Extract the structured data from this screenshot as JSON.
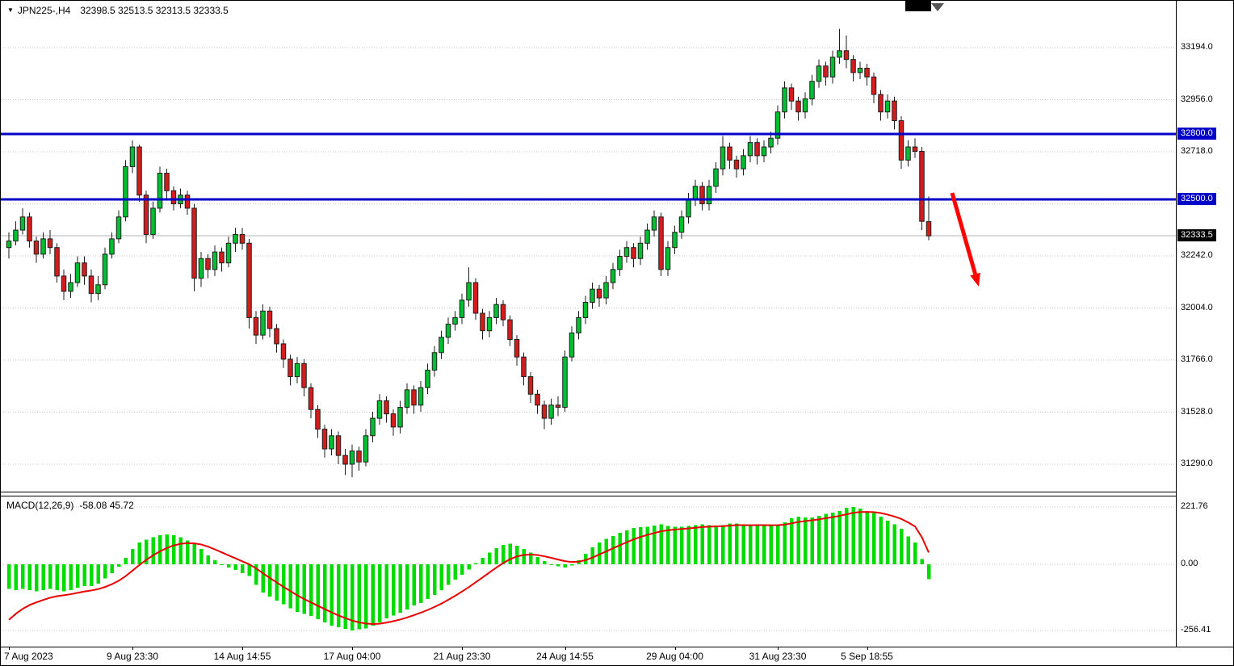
{
  "header": {
    "dropdown_icon": "▼",
    "symbol_period": "JPN225-,H4",
    "ohlc_text": "32398.5 32513.5 32313.5 32333.5"
  },
  "macd_header": {
    "label": "MACD(12,26,9)",
    "values": "-58.08 45.72"
  },
  "colors": {
    "background": "#FFFFFF",
    "grid": "#C8C8C8",
    "bull": "#00BF30",
    "bear": "#D41C1C",
    "outline": "#1E1E1E",
    "level_line": "#0202C8",
    "level_tag_bg": "#0202C8",
    "bid_line": "#B3B3B3",
    "bid_tag_bg": "#000000",
    "macd_hist": "#00DB00",
    "macd_signal": "#E80000",
    "arrow": "#FF0000",
    "text": "#000000"
  },
  "chart_data": [
    {
      "type": "candlestick",
      "symbol": "JPN225-",
      "timeframe": "H4",
      "ohlc_current": {
        "open": 32398.5,
        "high": 32513.5,
        "low": 32313.5,
        "close": 32333.5
      },
      "y_axis": {
        "tick_labels": [
          {
            "t": "33194.0",
            "p": 33194
          },
          {
            "t": "32956.0",
            "p": 32956
          },
          {
            "t": "32718.0",
            "p": 32718
          },
          {
            "t": "32242.0",
            "p": 32242
          },
          {
            "t": "32004.0",
            "p": 32004
          },
          {
            "t": "31766.0",
            "p": 31766
          },
          {
            "t": "31528.0",
            "p": 31528
          },
          {
            "t": "31290.0",
            "p": 31290
          }
        ],
        "grid": [
          33194,
          32956,
          32718,
          32480,
          32242,
          32004,
          31766,
          31528,
          31290
        ]
      },
      "levels": [
        {
          "price": 32800,
          "label": "32800.0"
        },
        {
          "price": 32500,
          "label": "32500.0"
        }
      ],
      "bid": {
        "price": 32333.5,
        "label": "32333.5"
      },
      "x_ticks": [
        {
          "index": 0,
          "label": "7 Aug 2023"
        },
        {
          "index": 18,
          "label": "9 Aug 23:30"
        },
        {
          "index": 34,
          "label": "14 Aug 14:55"
        },
        {
          "index": 50,
          "label": "17 Aug 04:00"
        },
        {
          "index": 66,
          "label": "21 Aug 23:30"
        },
        {
          "index": 81,
          "label": "24 Aug 14:55"
        },
        {
          "index": 97,
          "label": "29 Aug 04:00"
        },
        {
          "index": 112,
          "label": "31 Aug 23:30"
        },
        {
          "index": 125,
          "label": "5 Sep 18:55"
        }
      ],
      "candles": [
        [
          32280,
          32350,
          32230,
          32310
        ],
        [
          32310,
          32400,
          32290,
          32360
        ],
        [
          32360,
          32460,
          32340,
          32420
        ],
        [
          32420,
          32440,
          32280,
          32310
        ],
        [
          32310,
          32330,
          32210,
          32250
        ],
        [
          32250,
          32350,
          32230,
          32320
        ],
        [
          32320,
          32360,
          32250,
          32280
        ],
        [
          32280,
          32300,
          32120,
          32150
        ],
        [
          32150,
          32180,
          32040,
          32080
        ],
        [
          32080,
          32160,
          32050,
          32120
        ],
        [
          32120,
          32240,
          32100,
          32210
        ],
        [
          32210,
          32240,
          32110,
          32150
        ],
        [
          32150,
          32180,
          32030,
          32070
        ],
        [
          32070,
          32150,
          32040,
          32110
        ],
        [
          32110,
          32280,
          32090,
          32250
        ],
        [
          32250,
          32350,
          32230,
          32320
        ],
        [
          32320,
          32450,
          32300,
          32420
        ],
        [
          32420,
          32680,
          32400,
          32650
        ],
        [
          32650,
          32770,
          32620,
          32740
        ],
        [
          32740,
          32750,
          32490,
          32520
        ],
        [
          32520,
          32540,
          32300,
          32340
        ],
        [
          32340,
          32490,
          32320,
          32460
        ],
        [
          32460,
          32650,
          32440,
          32620
        ],
        [
          32620,
          32640,
          32500,
          32540
        ],
        [
          32540,
          32560,
          32450,
          32480
        ],
        [
          32480,
          32550,
          32460,
          32520
        ],
        [
          32520,
          32540,
          32430,
          32460
        ],
        [
          32460,
          32480,
          32080,
          32140
        ],
        [
          32140,
          32260,
          32100,
          32230
        ],
        [
          32230,
          32250,
          32140,
          32180
        ],
        [
          32180,
          32290,
          32150,
          32260
        ],
        [
          32260,
          32280,
          32170,
          32210
        ],
        [
          32210,
          32330,
          32190,
          32300
        ],
        [
          32300,
          32370,
          32260,
          32340
        ],
        [
          32340,
          32370,
          32270,
          32300
        ],
        [
          32300,
          32320,
          31910,
          31960
        ],
        [
          31960,
          31990,
          31840,
          31880
        ],
        [
          31880,
          32020,
          31860,
          31990
        ],
        [
          31990,
          32010,
          31870,
          31910
        ],
        [
          31910,
          31930,
          31800,
          31840
        ],
        [
          31840,
          31860,
          31730,
          31770
        ],
        [
          31770,
          31790,
          31650,
          31690
        ],
        [
          31690,
          31780,
          31660,
          31750
        ],
        [
          31750,
          31770,
          31600,
          31640
        ],
        [
          31640,
          31660,
          31500,
          31540
        ],
        [
          31540,
          31560,
          31410,
          31450
        ],
        [
          31450,
          31470,
          31320,
          31360
        ],
        [
          31360,
          31450,
          31330,
          31420
        ],
        [
          31420,
          31440,
          31290,
          31330
        ],
        [
          31330,
          31360,
          31240,
          31290
        ],
        [
          31290,
          31380,
          31230,
          31350
        ],
        [
          31350,
          31370,
          31260,
          31300
        ],
        [
          31300,
          31450,
          31280,
          31420
        ],
        [
          31420,
          31530,
          31390,
          31500
        ],
        [
          31500,
          31610,
          31470,
          31580
        ],
        [
          31580,
          31600,
          31480,
          31520
        ],
        [
          31520,
          31540,
          31420,
          31460
        ],
        [
          31460,
          31580,
          31430,
          31550
        ],
        [
          31550,
          31660,
          31520,
          31630
        ],
        [
          31630,
          31650,
          31520,
          31560
        ],
        [
          31560,
          31670,
          31530,
          31640
        ],
        [
          31640,
          31750,
          31610,
          31720
        ],
        [
          31720,
          31830,
          31690,
          31800
        ],
        [
          31800,
          31900,
          31770,
          31870
        ],
        [
          31870,
          31960,
          31840,
          31930
        ],
        [
          31930,
          31990,
          31900,
          31960
        ],
        [
          31960,
          32070,
          31930,
          32040
        ],
        [
          32040,
          32190,
          32010,
          32120
        ],
        [
          32120,
          32140,
          31950,
          31980
        ],
        [
          31980,
          32000,
          31860,
          31900
        ],
        [
          31900,
          31990,
          31870,
          31960
        ],
        [
          31960,
          32050,
          31930,
          32020
        ],
        [
          32020,
          32040,
          31920,
          31950
        ],
        [
          31950,
          31970,
          31830,
          31860
        ],
        [
          31860,
          31880,
          31740,
          31780
        ],
        [
          31780,
          31800,
          31650,
          31690
        ],
        [
          31690,
          31710,
          31570,
          31610
        ],
        [
          31610,
          31630,
          31520,
          31560
        ],
        [
          31560,
          31580,
          31450,
          31500
        ],
        [
          31500,
          31590,
          31470,
          31560
        ],
        [
          31560,
          31600,
          31510,
          31550
        ],
        [
          31550,
          31810,
          31530,
          31780
        ],
        [
          31780,
          31920,
          31760,
          31890
        ],
        [
          31890,
          31990,
          31860,
          31960
        ],
        [
          31960,
          32060,
          31930,
          32030
        ],
        [
          32030,
          32120,
          32000,
          32090
        ],
        [
          32090,
          32110,
          32010,
          32050
        ],
        [
          32050,
          32150,
          32020,
          32120
        ],
        [
          32120,
          32210,
          32090,
          32180
        ],
        [
          32180,
          32270,
          32150,
          32240
        ],
        [
          32240,
          32310,
          32210,
          32280
        ],
        [
          32280,
          32300,
          32190,
          32230
        ],
        [
          32230,
          32330,
          32200,
          32300
        ],
        [
          32300,
          32390,
          32270,
          32360
        ],
        [
          32360,
          32450,
          32330,
          32420
        ],
        [
          32420,
          32440,
          32150,
          32180
        ],
        [
          32180,
          32310,
          32150,
          32280
        ],
        [
          32280,
          32380,
          32250,
          32350
        ],
        [
          32350,
          32450,
          32320,
          32420
        ],
        [
          32420,
          32530,
          32390,
          32500
        ],
        [
          32500,
          32590,
          32470,
          32560
        ],
        [
          32560,
          32580,
          32450,
          32480
        ],
        [
          32480,
          32590,
          32450,
          32560
        ],
        [
          32560,
          32670,
          32530,
          32640
        ],
        [
          32640,
          32790,
          32610,
          32740
        ],
        [
          32740,
          32760,
          32640,
          32680
        ],
        [
          32680,
          32700,
          32600,
          32640
        ],
        [
          32640,
          32730,
          32610,
          32700
        ],
        [
          32700,
          32790,
          32670,
          32760
        ],
        [
          32760,
          32780,
          32660,
          32700
        ],
        [
          32700,
          32770,
          32670,
          32740
        ],
        [
          32740,
          32810,
          32710,
          32780
        ],
        [
          32780,
          32930,
          32750,
          32900
        ],
        [
          32900,
          33040,
          32870,
          33010
        ],
        [
          33010,
          33030,
          32910,
          32950
        ],
        [
          32950,
          32970,
          32860,
          32900
        ],
        [
          32900,
          32990,
          32870,
          32960
        ],
        [
          32960,
          33070,
          32930,
          33040
        ],
        [
          33040,
          33140,
          33010,
          33110
        ],
        [
          33110,
          33130,
          33020,
          33060
        ],
        [
          33060,
          33180,
          33030,
          33150
        ],
        [
          33150,
          33280,
          33120,
          33180
        ],
        [
          33180,
          33250,
          33100,
          33140
        ],
        [
          33140,
          33160,
          33040,
          33080
        ],
        [
          33080,
          33130,
          33050,
          33100
        ],
        [
          33100,
          33120,
          33020,
          33060
        ],
        [
          33060,
          33080,
          32940,
          32980
        ],
        [
          32980,
          33000,
          32860,
          32900
        ],
        [
          32900,
          32980,
          32870,
          32950
        ],
        [
          32950,
          32970,
          32820,
          32860
        ],
        [
          32860,
          32880,
          32640,
          32680
        ],
        [
          32680,
          32770,
          32650,
          32740
        ],
        [
          32740,
          32780,
          32690,
          32720
        ],
        [
          32720,
          32740,
          32360,
          32400
        ],
        [
          32398.5,
          32513.5,
          32313.5,
          32333.5
        ]
      ],
      "arrow": {
        "color": "#FF0000",
        "from": [
          1178,
          238
        ],
        "to": [
          1206.6,
          338.6
        ],
        "head": [
          [
            1211,
            354
          ],
          [
            1200.3,
            340.4
          ],
          [
            1212.9,
            336.8
          ]
        ]
      }
    },
    {
      "type": "macd",
      "label": "MACD(12,26,9)",
      "current": {
        "macd": -58.08,
        "signal": 45.72
      },
      "y_ticks": [
        {
          "t": "221.76",
          "v": 221.76
        },
        {
          "t": "0.00",
          "v": 0
        },
        {
          "t": "-256.41",
          "v": -256.41
        }
      ],
      "histogram": [
        -95,
        -100,
        -95,
        -100,
        -105,
        -100,
        -95,
        -100,
        -105,
        -100,
        -90,
        -85,
        -85,
        -75,
        -55,
        -35,
        -10,
        25,
        60,
        85,
        95,
        105,
        112,
        115,
        112,
        105,
        92,
        78,
        60,
        35,
        15,
        0,
        -12,
        -22,
        -35,
        -45,
        -80,
        -110,
        -125,
        -140,
        -155,
        -170,
        -185,
        -192,
        -200,
        -212,
        -225,
        -238,
        -244,
        -250,
        -256.41,
        -252,
        -248,
        -238,
        -225,
        -210,
        -198,
        -188,
        -175,
        -160,
        -150,
        -135,
        -118,
        -100,
        -80,
        -60,
        -40,
        -20,
        5,
        25,
        45,
        62,
        75,
        80,
        72,
        60,
        45,
        28,
        12,
        0,
        -8,
        -12,
        -5,
        15,
        40,
        65,
        85,
        98,
        110,
        122,
        132,
        140,
        143,
        146,
        150,
        155,
        148,
        145,
        145,
        148,
        152,
        155,
        152,
        150,
        152,
        158,
        158,
        152,
        150,
        152,
        152,
        150,
        152,
        162,
        178,
        185,
        182,
        182,
        188,
        196,
        200,
        206,
        218,
        221.76,
        215,
        205,
        198,
        185,
        168,
        155,
        138,
        108,
        85,
        20,
        -58.08
      ],
      "signal": [
        -215,
        -192,
        -172.6,
        -158.1,
        -147.5,
        -138,
        -129.4,
        -123.5,
        -119.8,
        -115.8,
        -110.6,
        -105.5,
        -101.4,
        -96.1,
        -87.9,
        -77.3,
        -63.8,
        -46.1,
        -24.9,
        -2.9,
        16.7,
        34.3,
        49.9,
        62.9,
        72.7,
        79.2,
        81.7,
        81,
        76.8,
        68.4,
        57.8,
        46.2,
        34.6,
        23.3,
        11.6,
        0.3,
        -15.8,
        -34.6,
        -52.7,
        -70.2,
        -87.1,
        -103.7,
        -120,
        -134.4,
        -147.5,
        -160.4,
        -173.3,
        -186.2,
        -197.8,
        -208.2,
        -217.9,
        -224.7,
        -229.3,
        -231.1,
        -229.9,
        -225.9,
        -220.3,
        -213.8,
        -206.1,
        -196.9,
        -187.5,
        -177,
        -165.2,
        -152.2,
        -137.7,
        -122.2,
        -105.7,
        -88.6,
        -69.9,
        -50.9,
        -31.7,
        -13,
        4.6,
        19.7,
        30.2,
        36.1,
        37.9,
        35.9,
        31.1,
        24.9,
        18.3,
        12.2,
        8.8,
        10,
        16,
        25.8,
        37.7,
        49.7,
        61.8,
        73.8,
        85.5,
        96.4,
        105.7,
        113.7,
        121,
        127.8,
        131.8,
        134.5,
        136.6,
        138.8,
        141.5,
        144.2,
        145.7,
        146.6,
        147.7,
        149.7,
        151.4,
        151.5,
        151.2,
        151.4,
        151.5,
        151.2,
        151.4,
        153.5,
        158.4,
        163.7,
        167.4,
        170.3,
        173.8,
        178.3,
        182.6,
        187.3,
        193.4,
        199.1,
        202.3,
        202.8,
        201.9,
        198.5,
        192.4,
        184.9,
        175.5,
        162,
        146.6,
        105,
        45.72
      ]
    }
  ]
}
